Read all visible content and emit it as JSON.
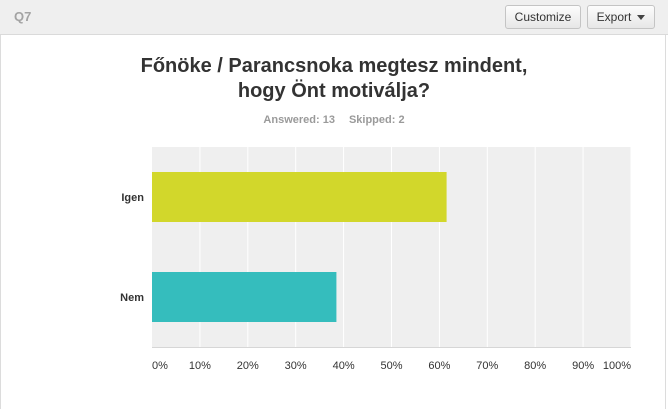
{
  "question": {
    "label": "Q7"
  },
  "toolbar": {
    "customize_label": "Customize",
    "export_label": "Export"
  },
  "title": {
    "line1": "Főnöke / Parancsnoka megtesz mindent,",
    "line2": "hogy Önt motiválja?"
  },
  "stats": {
    "answered": "Answered: 13",
    "skipped": "Skipped: 2"
  },
  "chart_data": {
    "type": "bar",
    "orientation": "horizontal",
    "categories": [
      "Igen",
      "Nem"
    ],
    "values": [
      61.5,
      38.5
    ],
    "unit": "%",
    "xlim": [
      0,
      100
    ],
    "xticks": [
      "0%",
      "10%",
      "20%",
      "30%",
      "40%",
      "50%",
      "60%",
      "70%",
      "80%",
      "90%",
      "100%"
    ],
    "grid": true,
    "colors": [
      "#d2d72b",
      "#35bdbd"
    ],
    "plot_background": "#efefef"
  }
}
